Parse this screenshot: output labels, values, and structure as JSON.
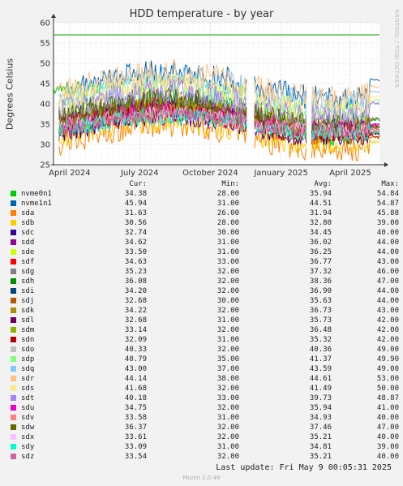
{
  "chart_data": {
    "type": "line",
    "title": "HDD temperature - by year",
    "ylabel": "Degrees Celsius",
    "xlabel": "",
    "ylim": [
      25,
      60
    ],
    "y_ticks": [
      "25",
      "30",
      "35",
      "40",
      "45",
      "50",
      "55",
      "60"
    ],
    "x_ticks": [
      {
        "label": "April 2024",
        "date": "2024-04-01"
      },
      {
        "label": "July 2024",
        "date": "2024-07-01"
      },
      {
        "label": "October 2024",
        "date": "2024-10-01"
      },
      {
        "label": "January 2025",
        "date": "2025-01-01"
      },
      {
        "label": "April 2025",
        "date": "2025-04-01"
      }
    ],
    "xlim": [
      "2024-03-11",
      "2025-05-09"
    ],
    "grid": true,
    "warning_line": {
      "value": 57,
      "color": "#00aa00"
    },
    "columns": [
      "Cur:",
      "Min:",
      "Avg:",
      "Max:"
    ],
    "series": [
      {
        "name": "nvme0n1",
        "color": "#00cc00",
        "cur": "34.38",
        "min": "28.00",
        "avg": "35.94",
        "max": "54.84"
      },
      {
        "name": "nvme1n1",
        "color": "#0066b3",
        "cur": "45.94",
        "min": "31.00",
        "avg": "44.51",
        "max": "54.87"
      },
      {
        "name": "sda",
        "color": "#ff8000",
        "cur": "31.63",
        "min": "26.00",
        "avg": "31.94",
        "max": "45.88"
      },
      {
        "name": "sdb",
        "color": "#ffcc00",
        "cur": "30.56",
        "min": "28.00",
        "avg": "32.80",
        "max": "39.00"
      },
      {
        "name": "sdc",
        "color": "#330099",
        "cur": "32.74",
        "min": "30.00",
        "avg": "34.45",
        "max": "40.00"
      },
      {
        "name": "sdd",
        "color": "#990099",
        "cur": "34.62",
        "min": "31.00",
        "avg": "36.02",
        "max": "44.00"
      },
      {
        "name": "sde",
        "color": "#ccff00",
        "cur": "33.50",
        "min": "31.00",
        "avg": "36.25",
        "max": "44.00"
      },
      {
        "name": "sdf",
        "color": "#ff0000",
        "cur": "34.63",
        "min": "33.00",
        "avg": "36.77",
        "max": "43.00"
      },
      {
        "name": "sdg",
        "color": "#808080",
        "cur": "35.23",
        "min": "32.00",
        "avg": "37.32",
        "max": "46.00"
      },
      {
        "name": "sdh",
        "color": "#008f00",
        "cur": "36.08",
        "min": "32.00",
        "avg": "38.36",
        "max": "47.00"
      },
      {
        "name": "sdi",
        "color": "#00487d",
        "cur": "34.20",
        "min": "32.00",
        "avg": "36.90",
        "max": "44.00"
      },
      {
        "name": "sdj",
        "color": "#b35a00",
        "cur": "32.68",
        "min": "30.00",
        "avg": "35.63",
        "max": "44.00"
      },
      {
        "name": "sdk",
        "color": "#b38f00",
        "cur": "34.22",
        "min": "32.00",
        "avg": "36.73",
        "max": "43.00"
      },
      {
        "name": "sdl",
        "color": "#6b006b",
        "cur": "32.68",
        "min": "31.00",
        "avg": "35.73",
        "max": "42.00"
      },
      {
        "name": "sdm",
        "color": "#8fb300",
        "cur": "33.14",
        "min": "32.00",
        "avg": "36.48",
        "max": "42.00"
      },
      {
        "name": "sdn",
        "color": "#b30000",
        "cur": "32.09",
        "min": "31.00",
        "avg": "35.32",
        "max": "42.00"
      },
      {
        "name": "sdo",
        "color": "#bebebe",
        "cur": "40.33",
        "min": "32.00",
        "avg": "40.36",
        "max": "49.00"
      },
      {
        "name": "sdp",
        "color": "#80ff80",
        "cur": "40.79",
        "min": "35.00",
        "avg": "41.37",
        "max": "49.90"
      },
      {
        "name": "sdq",
        "color": "#80c9ff",
        "cur": "43.00",
        "min": "37.00",
        "avg": "43.59",
        "max": "49.00"
      },
      {
        "name": "sdr",
        "color": "#ffc080",
        "cur": "44.14",
        "min": "38.00",
        "avg": "44.61",
        "max": "53.00"
      },
      {
        "name": "sds",
        "color": "#ffe680",
        "cur": "41.68",
        "min": "32.00",
        "avg": "41.49",
        "max": "50.00"
      },
      {
        "name": "sdt",
        "color": "#aa80ff",
        "cur": "40.18",
        "min": "33.00",
        "avg": "39.73",
        "max": "48.87"
      },
      {
        "name": "sdu",
        "color": "#ee00cc",
        "cur": "34.75",
        "min": "32.00",
        "avg": "35.94",
        "max": "41.00"
      },
      {
        "name": "sdv",
        "color": "#ff8080",
        "cur": "33.58",
        "min": "31.00",
        "avg": "34.93",
        "max": "40.00"
      },
      {
        "name": "sdw",
        "color": "#666600",
        "cur": "36.37",
        "min": "32.00",
        "avg": "37.46",
        "max": "47.00"
      },
      {
        "name": "sdx",
        "color": "#ffbfff",
        "cur": "33.61",
        "min": "32.00",
        "avg": "35.21",
        "max": "40.00"
      },
      {
        "name": "sdy",
        "color": "#00ffcc",
        "cur": "33.09",
        "min": "31.00",
        "avg": "34.81",
        "max": "39.00"
      },
      {
        "name": "sdz",
        "color": "#cc6699",
        "cur": "33.54",
        "min": "32.00",
        "avg": "35.21",
        "max": "40.00"
      }
    ]
  },
  "watermark": "RRDTOOL / TOBI OETIKER",
  "footer": {
    "last_update": "Last update: Fri May  9 00:05:31 2025",
    "munin_version": "Munin 2.0.49"
  }
}
